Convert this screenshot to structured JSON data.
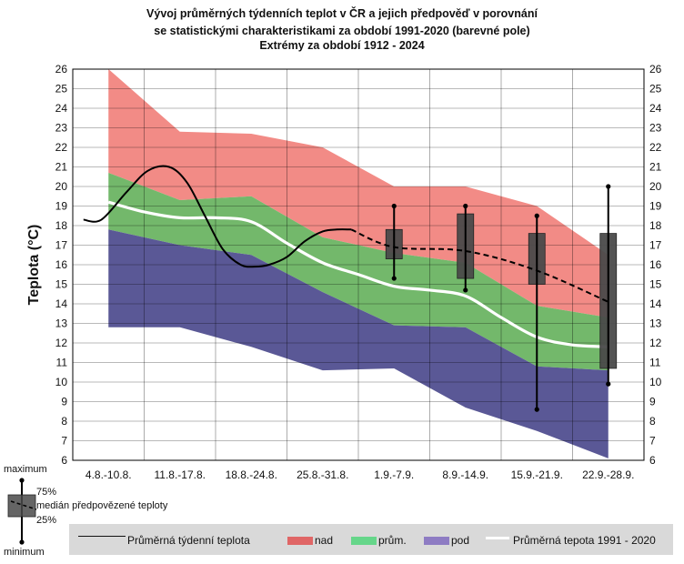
{
  "title": {
    "line1": "Vývoj průměrných týdenních teplot v ČR a jejich předpověď v porovnání",
    "line2": "se statistickými charakteristikami za období 1991-2020 (barevné pole)",
    "line3": "Extrémy za období 1912 - 2024"
  },
  "chart_data": {
    "type": "area",
    "ylabel": "Teplota (°C)",
    "ylim": [
      6,
      26
    ],
    "yticks": [
      6,
      7,
      8,
      9,
      10,
      11,
      12,
      13,
      14,
      15,
      16,
      17,
      18,
      19,
      20,
      21,
      22,
      23,
      24,
      25,
      26
    ],
    "categories": [
      "4.8.-10.8.",
      "11.8.-17.8.",
      "18.8.-24.8.",
      "25.8.-31.8.",
      "1.9.-7.9.",
      "8.9.-14.9.",
      "15.9.-21.9.",
      "22.9.-28.9."
    ],
    "grid": true,
    "bands": {
      "x": [
        0,
        1,
        2,
        3,
        4,
        5,
        6,
        7
      ],
      "max": [
        26.0,
        22.8,
        22.7,
        22.0,
        20.0,
        20.0,
        19.0,
        16.5
      ],
      "upper": [
        20.7,
        19.3,
        19.5,
        17.4,
        16.6,
        16.1,
        13.9,
        13.3
      ],
      "lower": [
        17.8,
        17.0,
        16.5,
        14.6,
        12.9,
        12.8,
        10.8,
        10.6
      ],
      "min": [
        12.8,
        12.8,
        11.8,
        10.6,
        10.7,
        8.7,
        7.5,
        6.1
      ]
    },
    "normal": {
      "name": "Průměrná tepota 1991 - 2020",
      "x": [
        0,
        0.5,
        1,
        1.5,
        2,
        2.5,
        3,
        3.5,
        4,
        4.5,
        5,
        5.5,
        6,
        6.5,
        7
      ],
      "values": [
        19.2,
        18.7,
        18.4,
        18.4,
        18.2,
        17.1,
        16.1,
        15.5,
        14.9,
        14.7,
        14.4,
        13.3,
        12.3,
        11.9,
        11.8
      ]
    },
    "observed": {
      "name": "Průměrná týdenní teplota",
      "x": [
        -0.35,
        -0.1,
        0.25,
        0.55,
        0.85,
        1.1,
        1.35,
        1.6,
        1.85,
        2.05,
        2.25,
        2.5,
        2.75,
        3.0,
        3.2,
        3.4
      ],
      "values": [
        18.3,
        18.3,
        19.7,
        20.8,
        21.0,
        20.2,
        18.5,
        16.8,
        16.0,
        15.9,
        16.0,
        16.4,
        17.2,
        17.7,
        17.8,
        17.8
      ]
    },
    "forecast_median": {
      "x": [
        3.4,
        4,
        5,
        6,
        7
      ],
      "values": [
        17.8,
        16.9,
        16.7,
        15.7,
        14.1
      ]
    },
    "forecast_boxes": [
      {
        "x": 4,
        "min": 15.3,
        "q25": 16.3,
        "q75": 17.8,
        "max": 19.0
      },
      {
        "x": 5,
        "min": 14.7,
        "q25": 15.3,
        "q75": 18.6,
        "max": 19.0
      },
      {
        "x": 6,
        "min": 8.6,
        "q25": 15.0,
        "q75": 17.6,
        "max": 18.5
      },
      {
        "x": 7,
        "min": 9.9,
        "q25": 10.7,
        "q75": 17.6,
        "max": 20.0
      }
    ],
    "legend": [
      "Průměrná týdenní teplota",
      "nad",
      "prům.",
      "pod",
      "Průměrná tepota 1991 - 2020"
    ],
    "legend_placement": "bottom"
  },
  "colors": {
    "nad": "#f28b86",
    "prum": "#73b86b",
    "pod": "#5a5896",
    "normal_line": "#ffffff",
    "box": "#4a4a4a",
    "legend_nad": "#e06666",
    "legend_prum": "#66d68a",
    "legend_pod": "#8e7cc3"
  },
  "legend": {
    "observed": "Průměrná týdenní teplota",
    "nad": "nad",
    "prum": "prům.",
    "pod": "pod",
    "normal": "Průměrná tepota 1991 - 2020"
  },
  "key": {
    "maximum": "maximum",
    "p75": "75%",
    "median": "medián předpovězené teploty",
    "p25": "25%",
    "minimum": "minimum"
  }
}
